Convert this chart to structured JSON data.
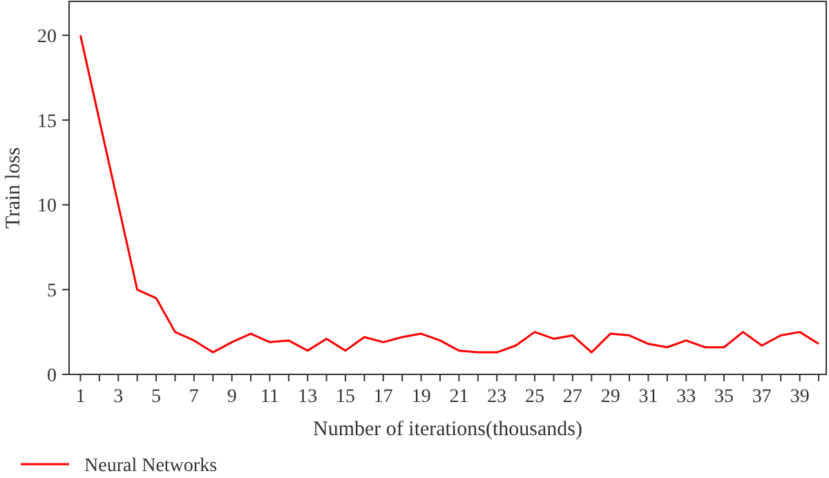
{
  "chart_data": {
    "type": "line",
    "xlabel": "Number of iterations(thousands)",
    "ylabel": "Train loss",
    "x": [
      1,
      2,
      3,
      4,
      5,
      6,
      7,
      8,
      9,
      10,
      11,
      12,
      13,
      14,
      15,
      16,
      17,
      18,
      19,
      20,
      21,
      22,
      23,
      24,
      25,
      26,
      27,
      28,
      29,
      30,
      31,
      32,
      33,
      34,
      35,
      36,
      37,
      38,
      39,
      40
    ],
    "xlim": [
      0.4,
      40.4
    ],
    "xticks": [
      1,
      {
        "value": 2,
        "label": null
      },
      3,
      {
        "value": 4,
        "label": null
      },
      5,
      {
        "value": 6,
        "label": null
      },
      7,
      {
        "value": 8,
        "label": null
      },
      9,
      {
        "value": 10,
        "label": null
      },
      11,
      {
        "value": 12,
        "label": null
      },
      13,
      {
        "value": 14,
        "label": null
      },
      15,
      {
        "value": 16,
        "label": null
      },
      17,
      {
        "value": 18,
        "label": null
      },
      19,
      {
        "value": 20,
        "label": null
      },
      21,
      {
        "value": 22,
        "label": null
      },
      23,
      {
        "value": 24,
        "label": null
      },
      25,
      {
        "value": 26,
        "label": null
      },
      27,
      {
        "value": 28,
        "label": null
      },
      29,
      {
        "value": 30,
        "label": null
      },
      31,
      {
        "value": 32,
        "label": null
      },
      33,
      {
        "value": 34,
        "label": null
      },
      35,
      {
        "value": 36,
        "label": null
      },
      37,
      {
        "value": 38,
        "label": null
      },
      39,
      {
        "value": 40,
        "label": null
      }
    ],
    "series": [
      {
        "name": "Neural Networks",
        "color": "#ff0000",
        "values": [
          20,
          15,
          10,
          5,
          4.5,
          2.5,
          2.0,
          1.3,
          1.9,
          2.4,
          1.9,
          2.0,
          1.4,
          2.1,
          1.4,
          2.2,
          1.9,
          2.2,
          2.4,
          2.0,
          1.4,
          1.3,
          1.3,
          1.7,
          2.5,
          2.1,
          2.3,
          1.3,
          2.4,
          2.3,
          1.8,
          1.6,
          2.0,
          1.6,
          1.6,
          2.5,
          1.7,
          2.3,
          2.5,
          1.8
        ]
      }
    ],
    "ylim": [
      0,
      22
    ],
    "yticks": [
      0,
      5,
      10,
      15,
      20
    ],
    "grid": false,
    "legend": "bottom left",
    "marker": "none",
    "line_style": "solid"
  }
}
